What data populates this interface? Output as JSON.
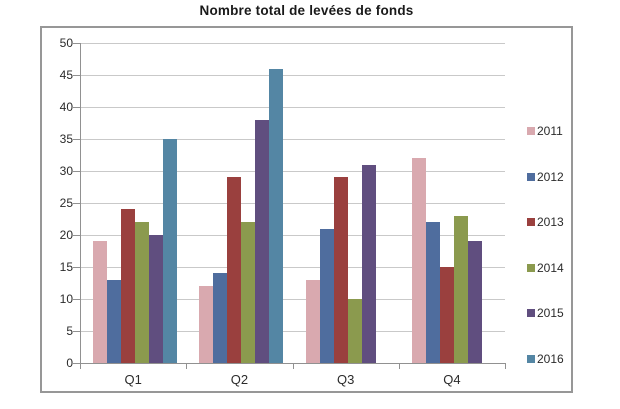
{
  "chart_data": {
    "type": "bar",
    "title": "Nombre total de levées de fonds",
    "categories": [
      "Q1",
      "Q2",
      "Q3",
      "Q4"
    ],
    "series": [
      {
        "name": "2011",
        "color": "#d9a9af",
        "values": [
          19,
          12,
          13,
          32
        ]
      },
      {
        "name": "2012",
        "color": "#4f6d9e",
        "values": [
          13,
          14,
          21,
          22
        ]
      },
      {
        "name": "2013",
        "color": "#9a403e",
        "values": [
          24,
          29,
          29,
          15
        ]
      },
      {
        "name": "2014",
        "color": "#8b9a4e",
        "values": [
          22,
          22,
          10,
          23
        ]
      },
      {
        "name": "2015",
        "color": "#604e7f",
        "values": [
          20,
          38,
          31,
          19
        ]
      },
      {
        "name": "2016",
        "color": "#5486a4",
        "values": [
          35,
          46,
          null,
          null
        ]
      }
    ],
    "ylim": [
      0,
      50
    ],
    "yticks": [
      0,
      5,
      10,
      15,
      20,
      25,
      30,
      35,
      40,
      45,
      50
    ],
    "grid": true,
    "legend_position": "right",
    "colors": {
      "grid": "#c9c9c9",
      "axis": "#919191",
      "frame_border": "#979797",
      "text": "#2b2b2b",
      "background": "#ffffff"
    }
  }
}
